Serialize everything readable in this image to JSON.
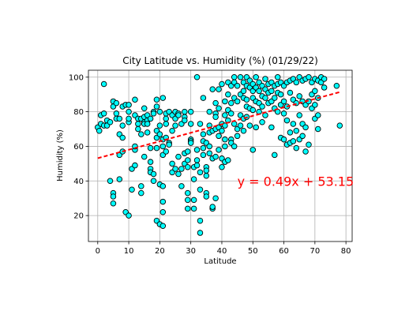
{
  "chart_data": {
    "type": "scatter",
    "title": "City Latitude vs. Humidity (%) (01/29/22)",
    "xlabel": "Latitude",
    "ylabel": "Humidity (%)",
    "xlim": [
      -3,
      82
    ],
    "ylim": [
      5,
      104
    ],
    "x_ticks": [
      0,
      10,
      20,
      30,
      40,
      50,
      60,
      70,
      80
    ],
    "y_ticks": [
      20,
      40,
      60,
      80,
      100
    ],
    "grid": true,
    "marker_color": "#00ffff",
    "marker_edge": "#000000",
    "regression": {
      "slope": 0.49,
      "intercept": 53.15,
      "x_range": [
        0,
        78
      ],
      "color": "#ff0000",
      "equation": "y = 0.49x + 53.15",
      "equation_at": [
        45,
        40
      ]
    },
    "points": [
      [
        0,
        71
      ],
      [
        0.5,
        69
      ],
      [
        1,
        73
      ],
      [
        1,
        78
      ],
      [
        2,
        96
      ],
      [
        2,
        79
      ],
      [
        2,
        72
      ],
      [
        3,
        75
      ],
      [
        3,
        72
      ],
      [
        4,
        74
      ],
      [
        4,
        40
      ],
      [
        5,
        33
      ],
      [
        5,
        31
      ],
      [
        5,
        27
      ],
      [
        5,
        86
      ],
      [
        5,
        83
      ],
      [
        6,
        85
      ],
      [
        6,
        79
      ],
      [
        6,
        76
      ],
      [
        7,
        76
      ],
      [
        7,
        67
      ],
      [
        7,
        41
      ],
      [
        7,
        55
      ],
      [
        8,
        57
      ],
      [
        8,
        72
      ],
      [
        8,
        83
      ],
      [
        8,
        65
      ],
      [
        9,
        84
      ],
      [
        9,
        22
      ],
      [
        10,
        84
      ],
      [
        10,
        80
      ],
      [
        10,
        74
      ],
      [
        10,
        76
      ],
      [
        10,
        20
      ],
      [
        11,
        47
      ],
      [
        11,
        35
      ],
      [
        12,
        58
      ],
      [
        12,
        60
      ],
      [
        12,
        49
      ],
      [
        12,
        87
      ],
      [
        12,
        78
      ],
      [
        13,
        76
      ],
      [
        13,
        73
      ],
      [
        13,
        70
      ],
      [
        14,
        76
      ],
      [
        14,
        67
      ],
      [
        14,
        37
      ],
      [
        14,
        33
      ],
      [
        15,
        82
      ],
      [
        15,
        54
      ],
      [
        15,
        74
      ],
      [
        15,
        77
      ],
      [
        15,
        73
      ],
      [
        16,
        78
      ],
      [
        16,
        75
      ],
      [
        16,
        73
      ],
      [
        16,
        68
      ],
      [
        17,
        76
      ],
      [
        17,
        59
      ],
      [
        17,
        51
      ],
      [
        17,
        47
      ],
      [
        17,
        45
      ],
      [
        18,
        44
      ],
      [
        18,
        40
      ],
      [
        18,
        80
      ],
      [
        18,
        79
      ],
      [
        19,
        87
      ],
      [
        19,
        83
      ],
      [
        19,
        69
      ],
      [
        19,
        59
      ],
      [
        19,
        17
      ],
      [
        19,
        65
      ],
      [
        20,
        72
      ],
      [
        20,
        38
      ],
      [
        20,
        80
      ],
      [
        20,
        67
      ],
      [
        20,
        15
      ],
      [
        21,
        88
      ],
      [
        21,
        55
      ],
      [
        21,
        60
      ],
      [
        21,
        64
      ],
      [
        21,
        28
      ],
      [
        21,
        37
      ],
      [
        21,
        22
      ],
      [
        21,
        14
      ],
      [
        22,
        79
      ],
      [
        22,
        76
      ],
      [
        22,
        73
      ],
      [
        22,
        65
      ],
      [
        22,
        57
      ],
      [
        23,
        80
      ],
      [
        23,
        62
      ],
      [
        23,
        61
      ],
      [
        24,
        78
      ],
      [
        24,
        69
      ],
      [
        24,
        50
      ],
      [
        24,
        45
      ],
      [
        25,
        80
      ],
      [
        25,
        76
      ],
      [
        25,
        72
      ],
      [
        25,
        47
      ],
      [
        26,
        79
      ],
      [
        26,
        78
      ],
      [
        26,
        54
      ],
      [
        26,
        44
      ],
      [
        27,
        73
      ],
      [
        27,
        47
      ],
      [
        27,
        37
      ],
      [
        28,
        80
      ],
      [
        28,
        77
      ],
      [
        28,
        75
      ],
      [
        28,
        50
      ],
      [
        28,
        56
      ],
      [
        29,
        57
      ],
      [
        29,
        52
      ],
      [
        29,
        48
      ],
      [
        29,
        33
      ],
      [
        29,
        29
      ],
      [
        29,
        24
      ],
      [
        30,
        80
      ],
      [
        30,
        73
      ],
      [
        30,
        64
      ],
      [
        30,
        63
      ],
      [
        30,
        62
      ],
      [
        31,
        48
      ],
      [
        31,
        41
      ],
      [
        31,
        29
      ],
      [
        31,
        24
      ],
      [
        32,
        100
      ],
      [
        32,
        58
      ],
      [
        32,
        52
      ],
      [
        32,
        49
      ],
      [
        33,
        73
      ],
      [
        33,
        45
      ],
      [
        33,
        35
      ],
      [
        33,
        17
      ],
      [
        33,
        10
      ],
      [
        34,
        88
      ],
      [
        34,
        67
      ],
      [
        34,
        63
      ],
      [
        34,
        59
      ],
      [
        34,
        55
      ],
      [
        35,
        62
      ],
      [
        35,
        48
      ],
      [
        35,
        46
      ],
      [
        35,
        43
      ],
      [
        35,
        33
      ],
      [
        35,
        31
      ],
      [
        36,
        80
      ],
      [
        36,
        72
      ],
      [
        36,
        68
      ],
      [
        36,
        60
      ],
      [
        36,
        56
      ],
      [
        37,
        93
      ],
      [
        37,
        69
      ],
      [
        37,
        53
      ],
      [
        37,
        24
      ],
      [
        37,
        25
      ],
      [
        38,
        85
      ],
      [
        38,
        79
      ],
      [
        38,
        77
      ],
      [
        38,
        70
      ],
      [
        38,
        54
      ],
      [
        38,
        30
      ],
      [
        39,
        93
      ],
      [
        39,
        82
      ],
      [
        39,
        71
      ],
      [
        39,
        66
      ],
      [
        39,
        58
      ],
      [
        40,
        96
      ],
      [
        40,
        73
      ],
      [
        40,
        69
      ],
      [
        40,
        53
      ],
      [
        40,
        48
      ],
      [
        41,
        86
      ],
      [
        41,
        78
      ],
      [
        41,
        72
      ],
      [
        41,
        64
      ],
      [
        41,
        60
      ],
      [
        41,
        51
      ],
      [
        42,
        97
      ],
      [
        42,
        90
      ],
      [
        42,
        81
      ],
      [
        42,
        75
      ],
      [
        42,
        52
      ],
      [
        43,
        95
      ],
      [
        43,
        85
      ],
      [
        43,
        79
      ],
      [
        43,
        64
      ],
      [
        43,
        62
      ],
      [
        44,
        100
      ],
      [
        44,
        97
      ],
      [
        44,
        88
      ],
      [
        44,
        73
      ],
      [
        44,
        60
      ],
      [
        45,
        95
      ],
      [
        45,
        86
      ],
      [
        45,
        70
      ],
      [
        45,
        66
      ],
      [
        46,
        100
      ],
      [
        46,
        90
      ],
      [
        46,
        78
      ],
      [
        46,
        72
      ],
      [
        47,
        97
      ],
      [
        47,
        92
      ],
      [
        47,
        88
      ],
      [
        47,
        76
      ],
      [
        47,
        69
      ],
      [
        48,
        100
      ],
      [
        48,
        95
      ],
      [
        48,
        87
      ],
      [
        48,
        83
      ],
      [
        48,
        77
      ],
      [
        49,
        98
      ],
      [
        49,
        94
      ],
      [
        49,
        82
      ],
      [
        49,
        72
      ],
      [
        50,
        96
      ],
      [
        50,
        92
      ],
      [
        50,
        88
      ],
      [
        50,
        81
      ],
      [
        50,
        58
      ],
      [
        51,
        100
      ],
      [
        51,
        94
      ],
      [
        51,
        86
      ],
      [
        51,
        71
      ],
      [
        52,
        97
      ],
      [
        52,
        92
      ],
      [
        52,
        85
      ],
      [
        52,
        80
      ],
      [
        53,
        95
      ],
      [
        53,
        89
      ],
      [
        53,
        83
      ],
      [
        53,
        74
      ],
      [
        54,
        99
      ],
      [
        54,
        93
      ],
      [
        54,
        88
      ],
      [
        54,
        78
      ],
      [
        55,
        96
      ],
      [
        55,
        91
      ],
      [
        55,
        85
      ],
      [
        56,
        97
      ],
      [
        56,
        92
      ],
      [
        56,
        86
      ],
      [
        56,
        71
      ],
      [
        57,
        95
      ],
      [
        57,
        88
      ],
      [
        57,
        82
      ],
      [
        57,
        55
      ],
      [
        58,
        100
      ],
      [
        58,
        96
      ],
      [
        58,
        91
      ],
      [
        58,
        80
      ],
      [
        59,
        97
      ],
      [
        59,
        90
      ],
      [
        59,
        84
      ],
      [
        59,
        65
      ],
      [
        60,
        95
      ],
      [
        60,
        86
      ],
      [
        60,
        79
      ],
      [
        60,
        64
      ],
      [
        61,
        97
      ],
      [
        61,
        83
      ],
      [
        61,
        75
      ],
      [
        61,
        61
      ],
      [
        62,
        98
      ],
      [
        62,
        91
      ],
      [
        62,
        68
      ],
      [
        62,
        62
      ],
      [
        63,
        99
      ],
      [
        63,
        87
      ],
      [
        63,
        73
      ],
      [
        63,
        63
      ],
      [
        64,
        97
      ],
      [
        64,
        85
      ],
      [
        64,
        69
      ],
      [
        64,
        59
      ],
      [
        65,
        100
      ],
      [
        65,
        89
      ],
      [
        65,
        78
      ],
      [
        65,
        64
      ],
      [
        66,
        98
      ],
      [
        66,
        86
      ],
      [
        66,
        73
      ],
      [
        66,
        66
      ],
      [
        67,
        99
      ],
      [
        67,
        84
      ],
      [
        67,
        71
      ],
      [
        67,
        57
      ],
      [
        68,
        100
      ],
      [
        68,
        86
      ],
      [
        68,
        61
      ],
      [
        69,
        97
      ],
      [
        69,
        90
      ],
      [
        69,
        82
      ],
      [
        70,
        99
      ],
      [
        70,
        92
      ],
      [
        70,
        84
      ],
      [
        70,
        76
      ],
      [
        71,
        98
      ],
      [
        71,
        88
      ],
      [
        71,
        78
      ],
      [
        71,
        70
      ],
      [
        72,
        100
      ],
      [
        72,
        97
      ],
      [
        73,
        99
      ],
      [
        73,
        94
      ],
      [
        77,
        95
      ],
      [
        78,
        72
      ]
    ]
  }
}
